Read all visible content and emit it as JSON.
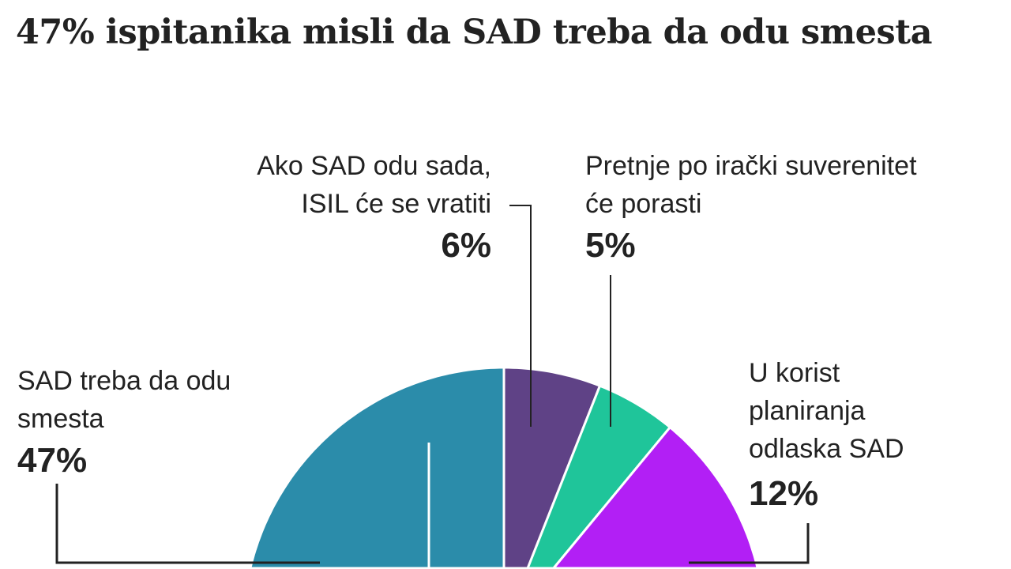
{
  "chart_data": {
    "type": "pie",
    "title": "47% ispitanika misli da SAD treba da odu smesta",
    "slices": [
      {
        "label": "Ako SAD odu sada, ISIL će se vratiti",
        "lines": [
          "Ako SAD odu sada,",
          "ISIL će se vratiti"
        ],
        "value": 6,
        "display": "6%",
        "color": "#5f4286"
      },
      {
        "label": "Pretnje po irački suverenitet će porasti",
        "lines": [
          "Pretnje po irački suverenitet",
          "će porasti"
        ],
        "value": 5,
        "display": "5%",
        "color": "#1fc59a"
      },
      {
        "label": "U korist planiranja odlaska SAD",
        "lines": [
          "U korist",
          "planiranja",
          "odlaska SAD"
        ],
        "value": 12,
        "display": "12%",
        "color": "#b21ff5"
      },
      {
        "label": "SAD treba da odu smesta",
        "lines": [
          "SAD treba da odu",
          "smesta"
        ],
        "value": 47,
        "display": "47%",
        "color": "#2b8caa"
      }
    ]
  }
}
